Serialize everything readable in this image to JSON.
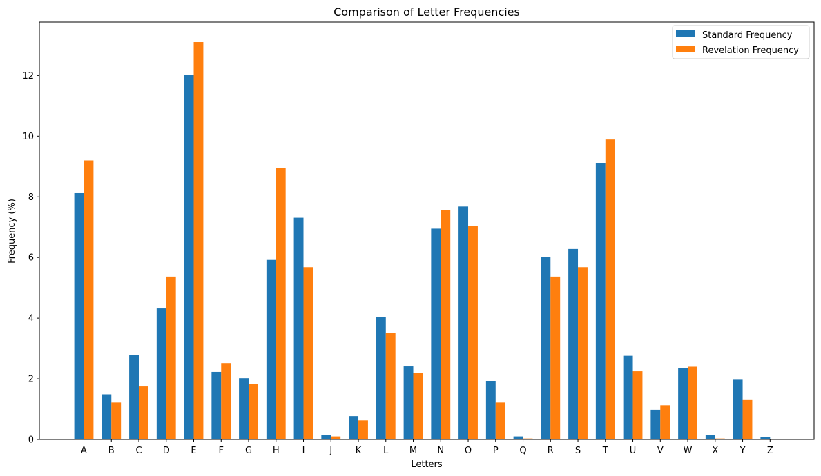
{
  "chart_data": {
    "type": "bar",
    "title": "Comparison of Letter Frequencies",
    "xlabel": "Letters",
    "ylabel": "Frequency (%)",
    "categories": [
      "A",
      "B",
      "C",
      "D",
      "E",
      "F",
      "G",
      "H",
      "I",
      "J",
      "K",
      "L",
      "M",
      "N",
      "O",
      "P",
      "Q",
      "R",
      "S",
      "T",
      "U",
      "V",
      "W",
      "X",
      "Y",
      "Z"
    ],
    "series": [
      {
        "name": "Standard Frequency",
        "color": "#1f77b4",
        "values": [
          8.12,
          1.49,
          2.78,
          4.32,
          12.02,
          2.23,
          2.02,
          5.92,
          7.31,
          0.15,
          0.77,
          4.03,
          2.41,
          6.95,
          7.68,
          1.93,
          0.1,
          6.02,
          6.28,
          9.1,
          2.76,
          0.98,
          2.36,
          0.15,
          1.97,
          0.07
        ]
      },
      {
        "name": "Revelation Frequency",
        "color": "#ff7f0e",
        "values": [
          9.2,
          1.22,
          1.75,
          5.37,
          13.1,
          2.52,
          1.82,
          8.94,
          5.68,
          0.1,
          0.63,
          3.52,
          2.2,
          7.56,
          7.05,
          1.22,
          0.03,
          5.37,
          5.68,
          9.89,
          2.25,
          1.13,
          2.4,
          0.03,
          1.3,
          0.02
        ]
      }
    ],
    "ylim": [
      0,
      13.76
    ],
    "yticks": [
      0,
      2,
      4,
      6,
      8,
      10,
      12
    ],
    "grid": false,
    "legend_position": "top-right"
  }
}
